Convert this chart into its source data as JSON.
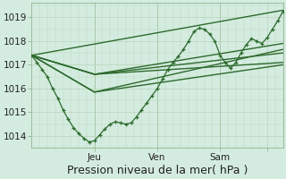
{
  "bg_color": "#d4ece0",
  "plot_bg_color": "#d4ece0",
  "grid_color": "#b8d4b8",
  "line_color": "#2d6a2d",
  "xlabel": "Pression niveau de la mer( hPa )",
  "ylabel_ticks": [
    1014,
    1015,
    1016,
    1017,
    1018,
    1019
  ],
  "ylim": [
    1013.5,
    1019.6
  ],
  "xlim": [
    -6,
    90
  ],
  "xtick_positions": [
    18,
    42,
    66,
    84
  ],
  "xtick_labels": [
    "Jeu",
    "Ven",
    "Sam",
    ""
  ],
  "vline_positions": [
    18,
    42,
    66
  ],
  "tick_fontsize": 7.5,
  "axis_label_fontsize": 9,
  "main_x": [
    -6,
    -4,
    -2,
    0,
    2,
    4,
    6,
    8,
    10,
    12,
    14,
    16,
    18,
    20,
    22,
    24,
    26,
    28,
    30,
    32,
    34,
    36,
    38,
    40,
    42,
    44,
    46,
    48,
    50,
    52,
    54,
    56,
    58,
    60,
    62,
    64,
    66,
    68,
    70,
    72,
    74,
    76,
    78,
    80,
    82,
    84,
    86,
    88,
    90
  ],
  "main_y": [
    1017.4,
    1017.1,
    1016.8,
    1016.5,
    1016.0,
    1015.6,
    1015.1,
    1014.7,
    1014.35,
    1014.1,
    1013.9,
    1013.75,
    1013.8,
    1014.05,
    1014.3,
    1014.5,
    1014.6,
    1014.55,
    1014.5,
    1014.55,
    1014.8,
    1015.1,
    1015.4,
    1015.7,
    1016.0,
    1016.4,
    1016.8,
    1017.1,
    1017.35,
    1017.65,
    1018.0,
    1018.4,
    1018.55,
    1018.5,
    1018.3,
    1018.0,
    1017.4,
    1017.1,
    1016.85,
    1017.1,
    1017.5,
    1017.85,
    1018.1,
    1018.0,
    1017.9,
    1018.15,
    1018.5,
    1018.85,
    1019.25
  ],
  "ensemble_lines": [
    {
      "x": [
        -6,
        90
      ],
      "y": [
        1017.4,
        1019.3
      ]
    },
    {
      "x": [
        -6,
        18,
        90
      ],
      "y": [
        1017.4,
        1016.6,
        1017.1
      ]
    },
    {
      "x": [
        -6,
        18,
        90
      ],
      "y": [
        1017.4,
        1016.6,
        1017.5
      ]
    },
    {
      "x": [
        -6,
        18,
        90
      ],
      "y": [
        1017.4,
        1016.6,
        1017.9
      ]
    },
    {
      "x": [
        -6,
        18,
        90
      ],
      "y": [
        1017.4,
        1015.85,
        1017.0
      ]
    },
    {
      "x": [
        -6,
        18,
        90
      ],
      "y": [
        1017.4,
        1015.85,
        1017.65
      ]
    }
  ]
}
